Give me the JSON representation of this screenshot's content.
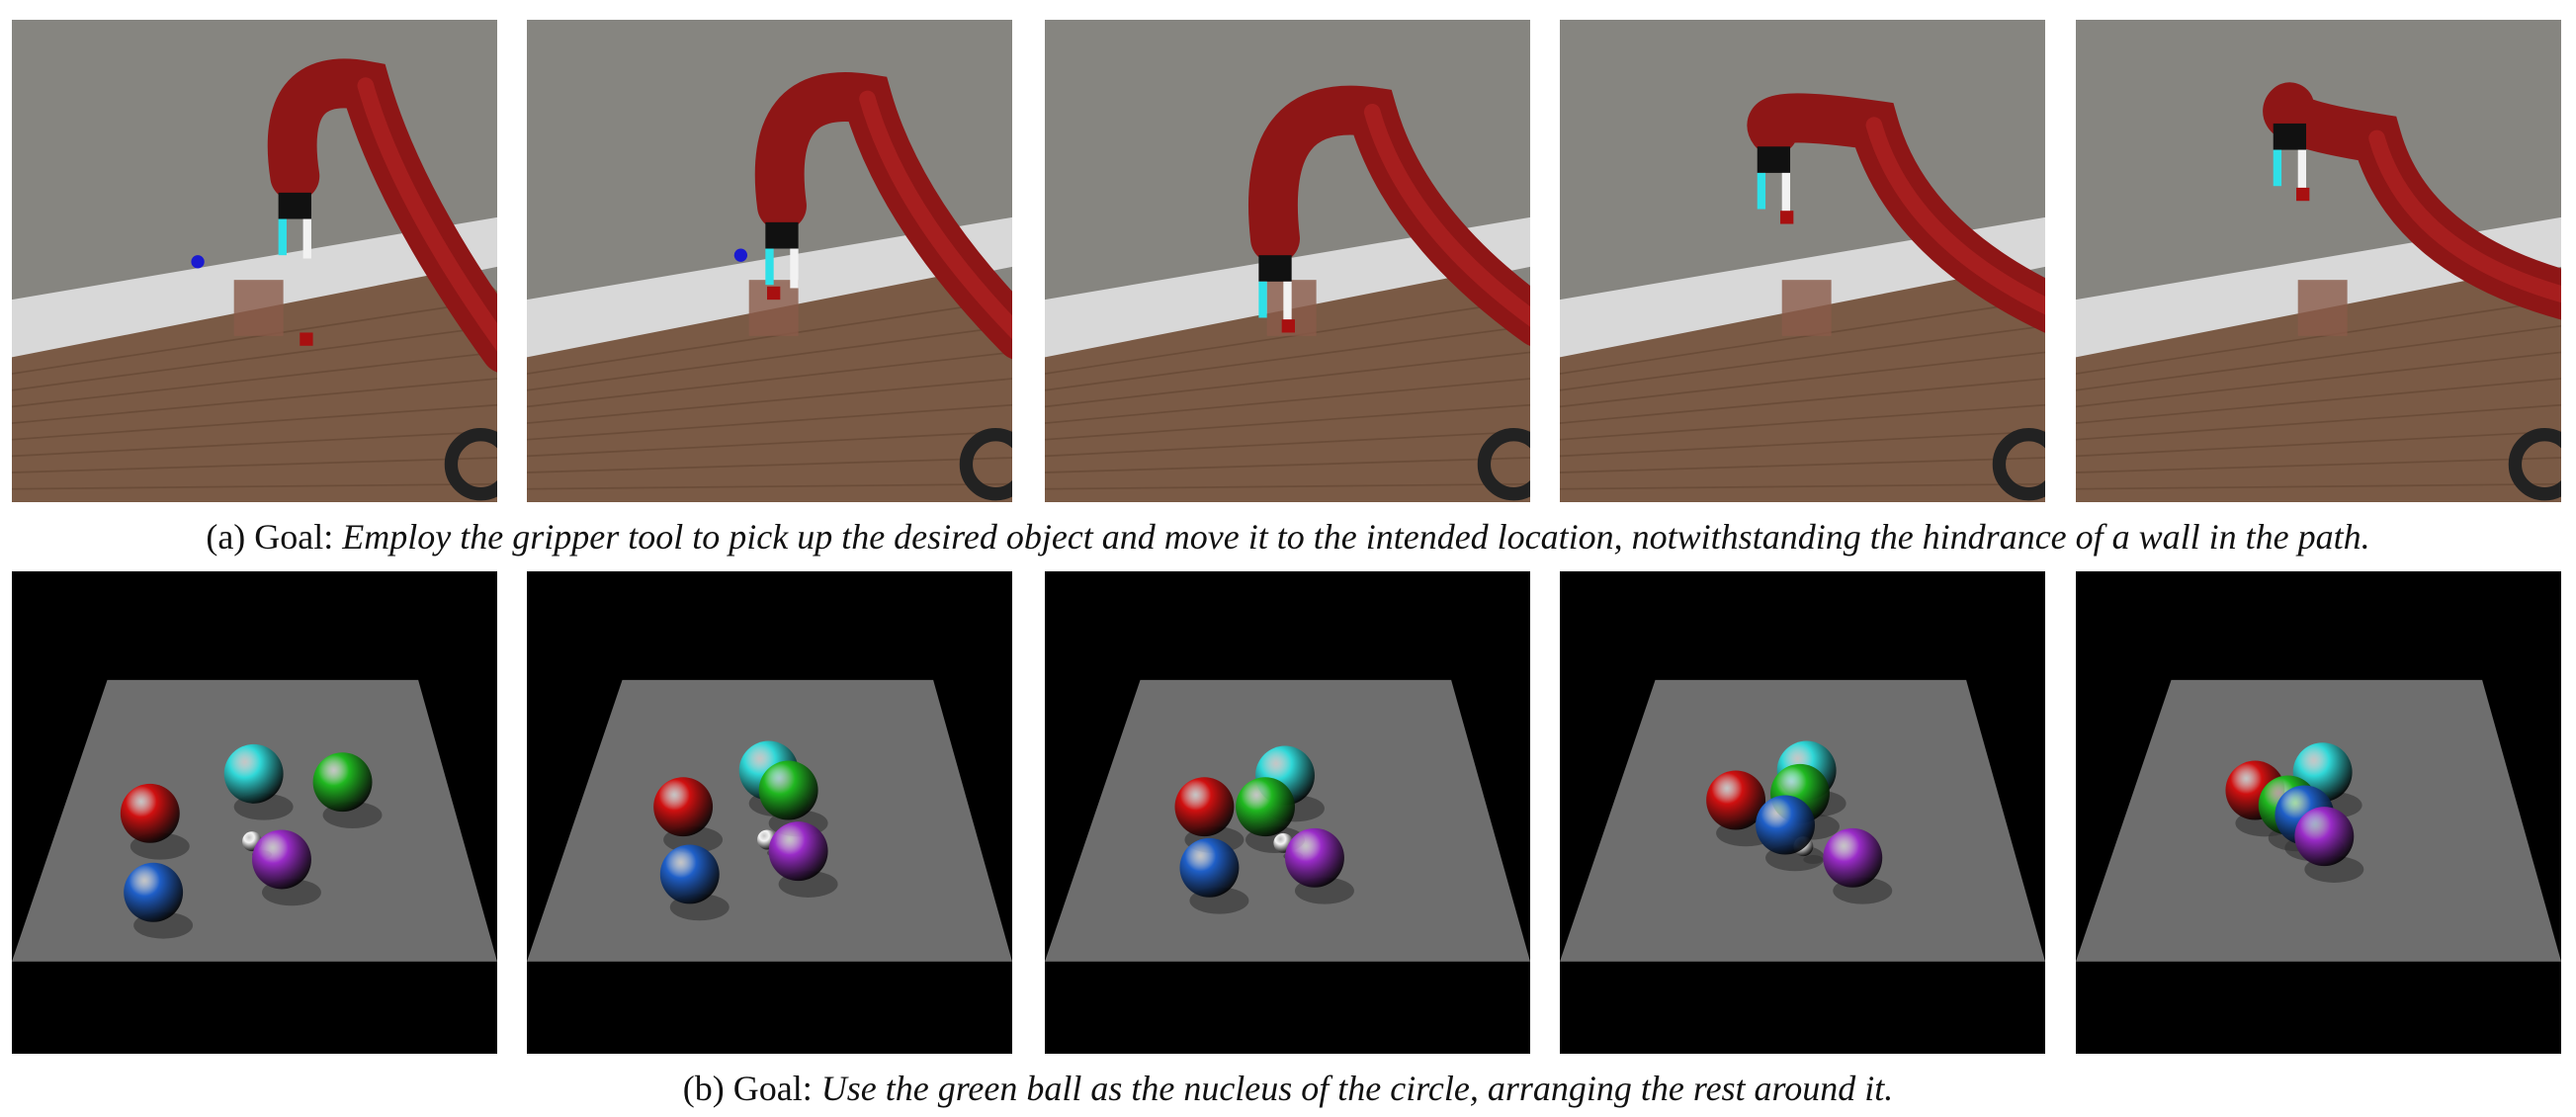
{
  "figure": {
    "row_a": {
      "label": "(a) Goal:",
      "goal": "Employ the gripper tool to pick up the desired object and move it to the intended location, notwithstanding the hindrance of a wall in the path."
    },
    "row_b": {
      "label": "(b) Goal:",
      "goal": "Use the green ball as the nucleus of the circle, arranging the rest around it."
    }
  }
}
